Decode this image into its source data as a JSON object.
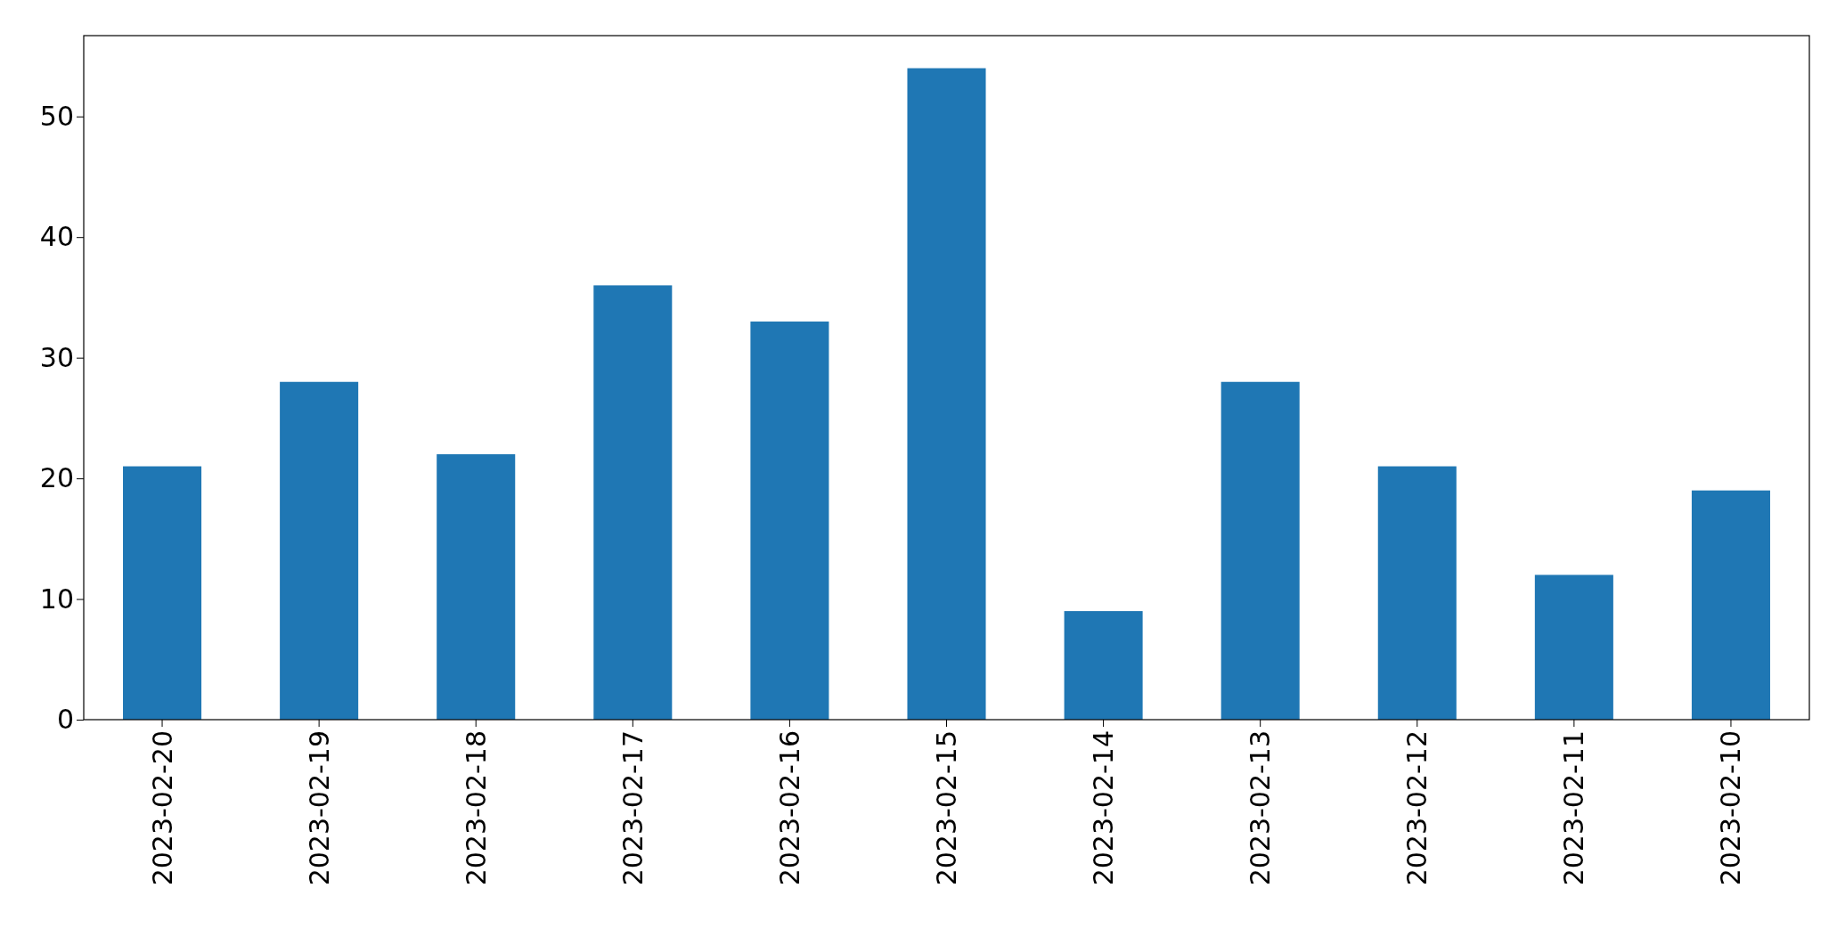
{
  "chart_data": {
    "type": "bar",
    "categories": [
      "2023-02-20",
      "2023-02-19",
      "2023-02-18",
      "2023-02-17",
      "2023-02-16",
      "2023-02-15",
      "2023-02-14",
      "2023-02-13",
      "2023-02-12",
      "2023-02-11",
      "2023-02-10"
    ],
    "values": [
      21,
      28,
      22,
      36,
      33,
      54,
      9,
      28,
      21,
      12,
      19
    ],
    "color": "#1f77b4",
    "ylim": [
      0,
      56.7
    ],
    "yticks": [
      0,
      10,
      20,
      30,
      40,
      50
    ]
  }
}
